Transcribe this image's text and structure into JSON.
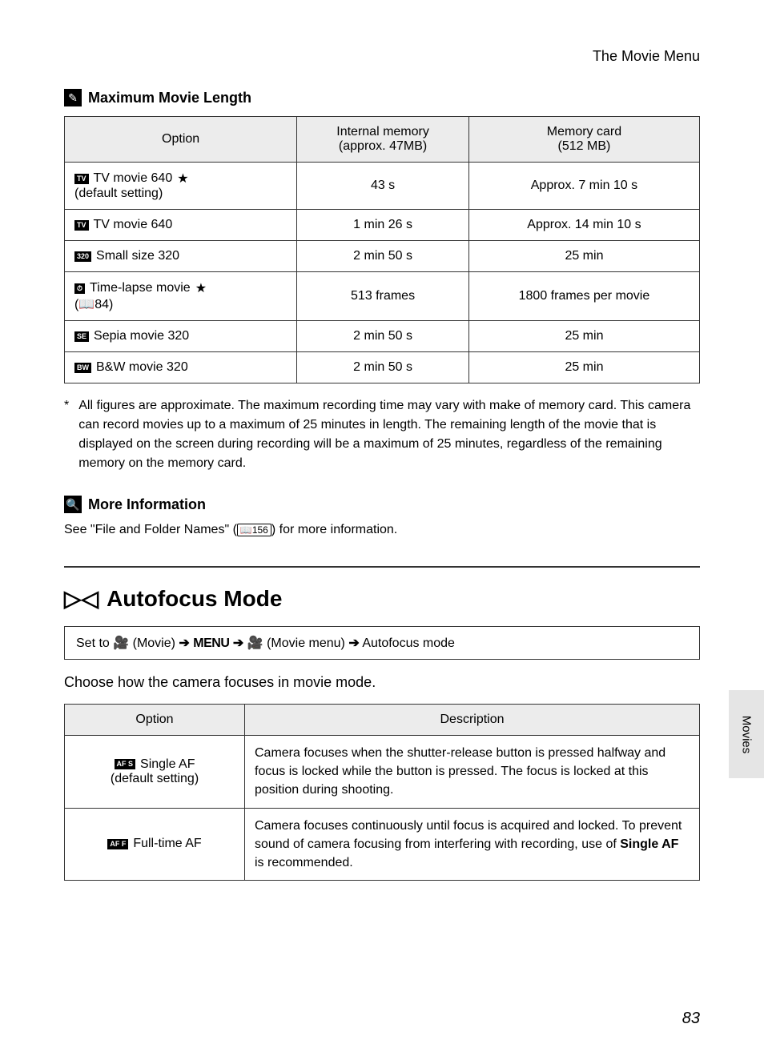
{
  "header": {
    "title": "The Movie Menu"
  },
  "section1": {
    "icon": "✎",
    "title": "Maximum Movie Length",
    "columns": [
      "Option",
      "Internal memory\n(approx. 47MB)",
      "Memory card\n(512 MB)"
    ],
    "rows": [
      {
        "icon": "TV",
        "label": "TV movie 640",
        "star": true,
        "sub": "(default setting)",
        "c1": "43 s",
        "c2": "Approx. 7 min 10 s"
      },
      {
        "icon": "TV",
        "label": "TV movie 640",
        "star": false,
        "sub": "",
        "c1": "1 min 26 s",
        "c2": "Approx. 14 min 10 s"
      },
      {
        "icon": "320",
        "label": "Small size 320",
        "star": false,
        "sub": "",
        "c1": "2 min 50 s",
        "c2": "25 min"
      },
      {
        "icon": "⏱",
        "label": "Time-lapse movie",
        "star": true,
        "sub": "(📖84)",
        "c1": "513 frames",
        "c2": "1800 frames per movie"
      },
      {
        "icon": "SE",
        "label": "Sepia movie 320",
        "star": false,
        "sub": "",
        "c1": "2 min 50 s",
        "c2": "25 min"
      },
      {
        "icon": "BW",
        "label": "B&W movie 320",
        "star": false,
        "sub": "",
        "c1": "2 min 50 s",
        "c2": "25 min"
      }
    ],
    "footnote_star": "*",
    "footnote": "All figures are approximate. The maximum recording time may vary with make of memory card. This camera can record movies up to a maximum of 25 minutes in length. The remaining length of the movie that is displayed on the screen during recording will be a maximum of 25 minutes, regardless of the remaining memory on the memory card."
  },
  "section2": {
    "icon": "🔍",
    "title": "More Information",
    "text_pre": "See \"File and Folder Names\" (",
    "text_ref": "📖156",
    "text_post": ") for more information."
  },
  "section3": {
    "icon": "▷◁",
    "title": "Autofocus Mode",
    "nav": {
      "pre": "Set to ",
      "movie_icon": "🎥",
      "movie_label": "(Movie)",
      "menu_label": "MENU",
      "movie_menu_label": "(Movie menu)",
      "end": "Autofocus mode"
    },
    "choose": "Choose how the camera focuses in movie mode.",
    "columns": [
      "Option",
      "Description"
    ],
    "rows": [
      {
        "icon": "AF S",
        "label": "Single AF",
        "sub": "(default setting)",
        "desc": "Camera focuses when the shutter-release button is pressed halfway and focus is locked while the button is pressed. The focus is locked at this position during shooting."
      },
      {
        "icon": "AF F",
        "label": "Full-time AF",
        "sub": "",
        "desc_pre": "Camera focuses continuously until focus is acquired and locked. To prevent sound of camera focusing from interfering with recording, use of ",
        "desc_bold": "Single AF",
        "desc_post": " is recommended."
      }
    ]
  },
  "side_tab": "Movies",
  "page_number": "83"
}
